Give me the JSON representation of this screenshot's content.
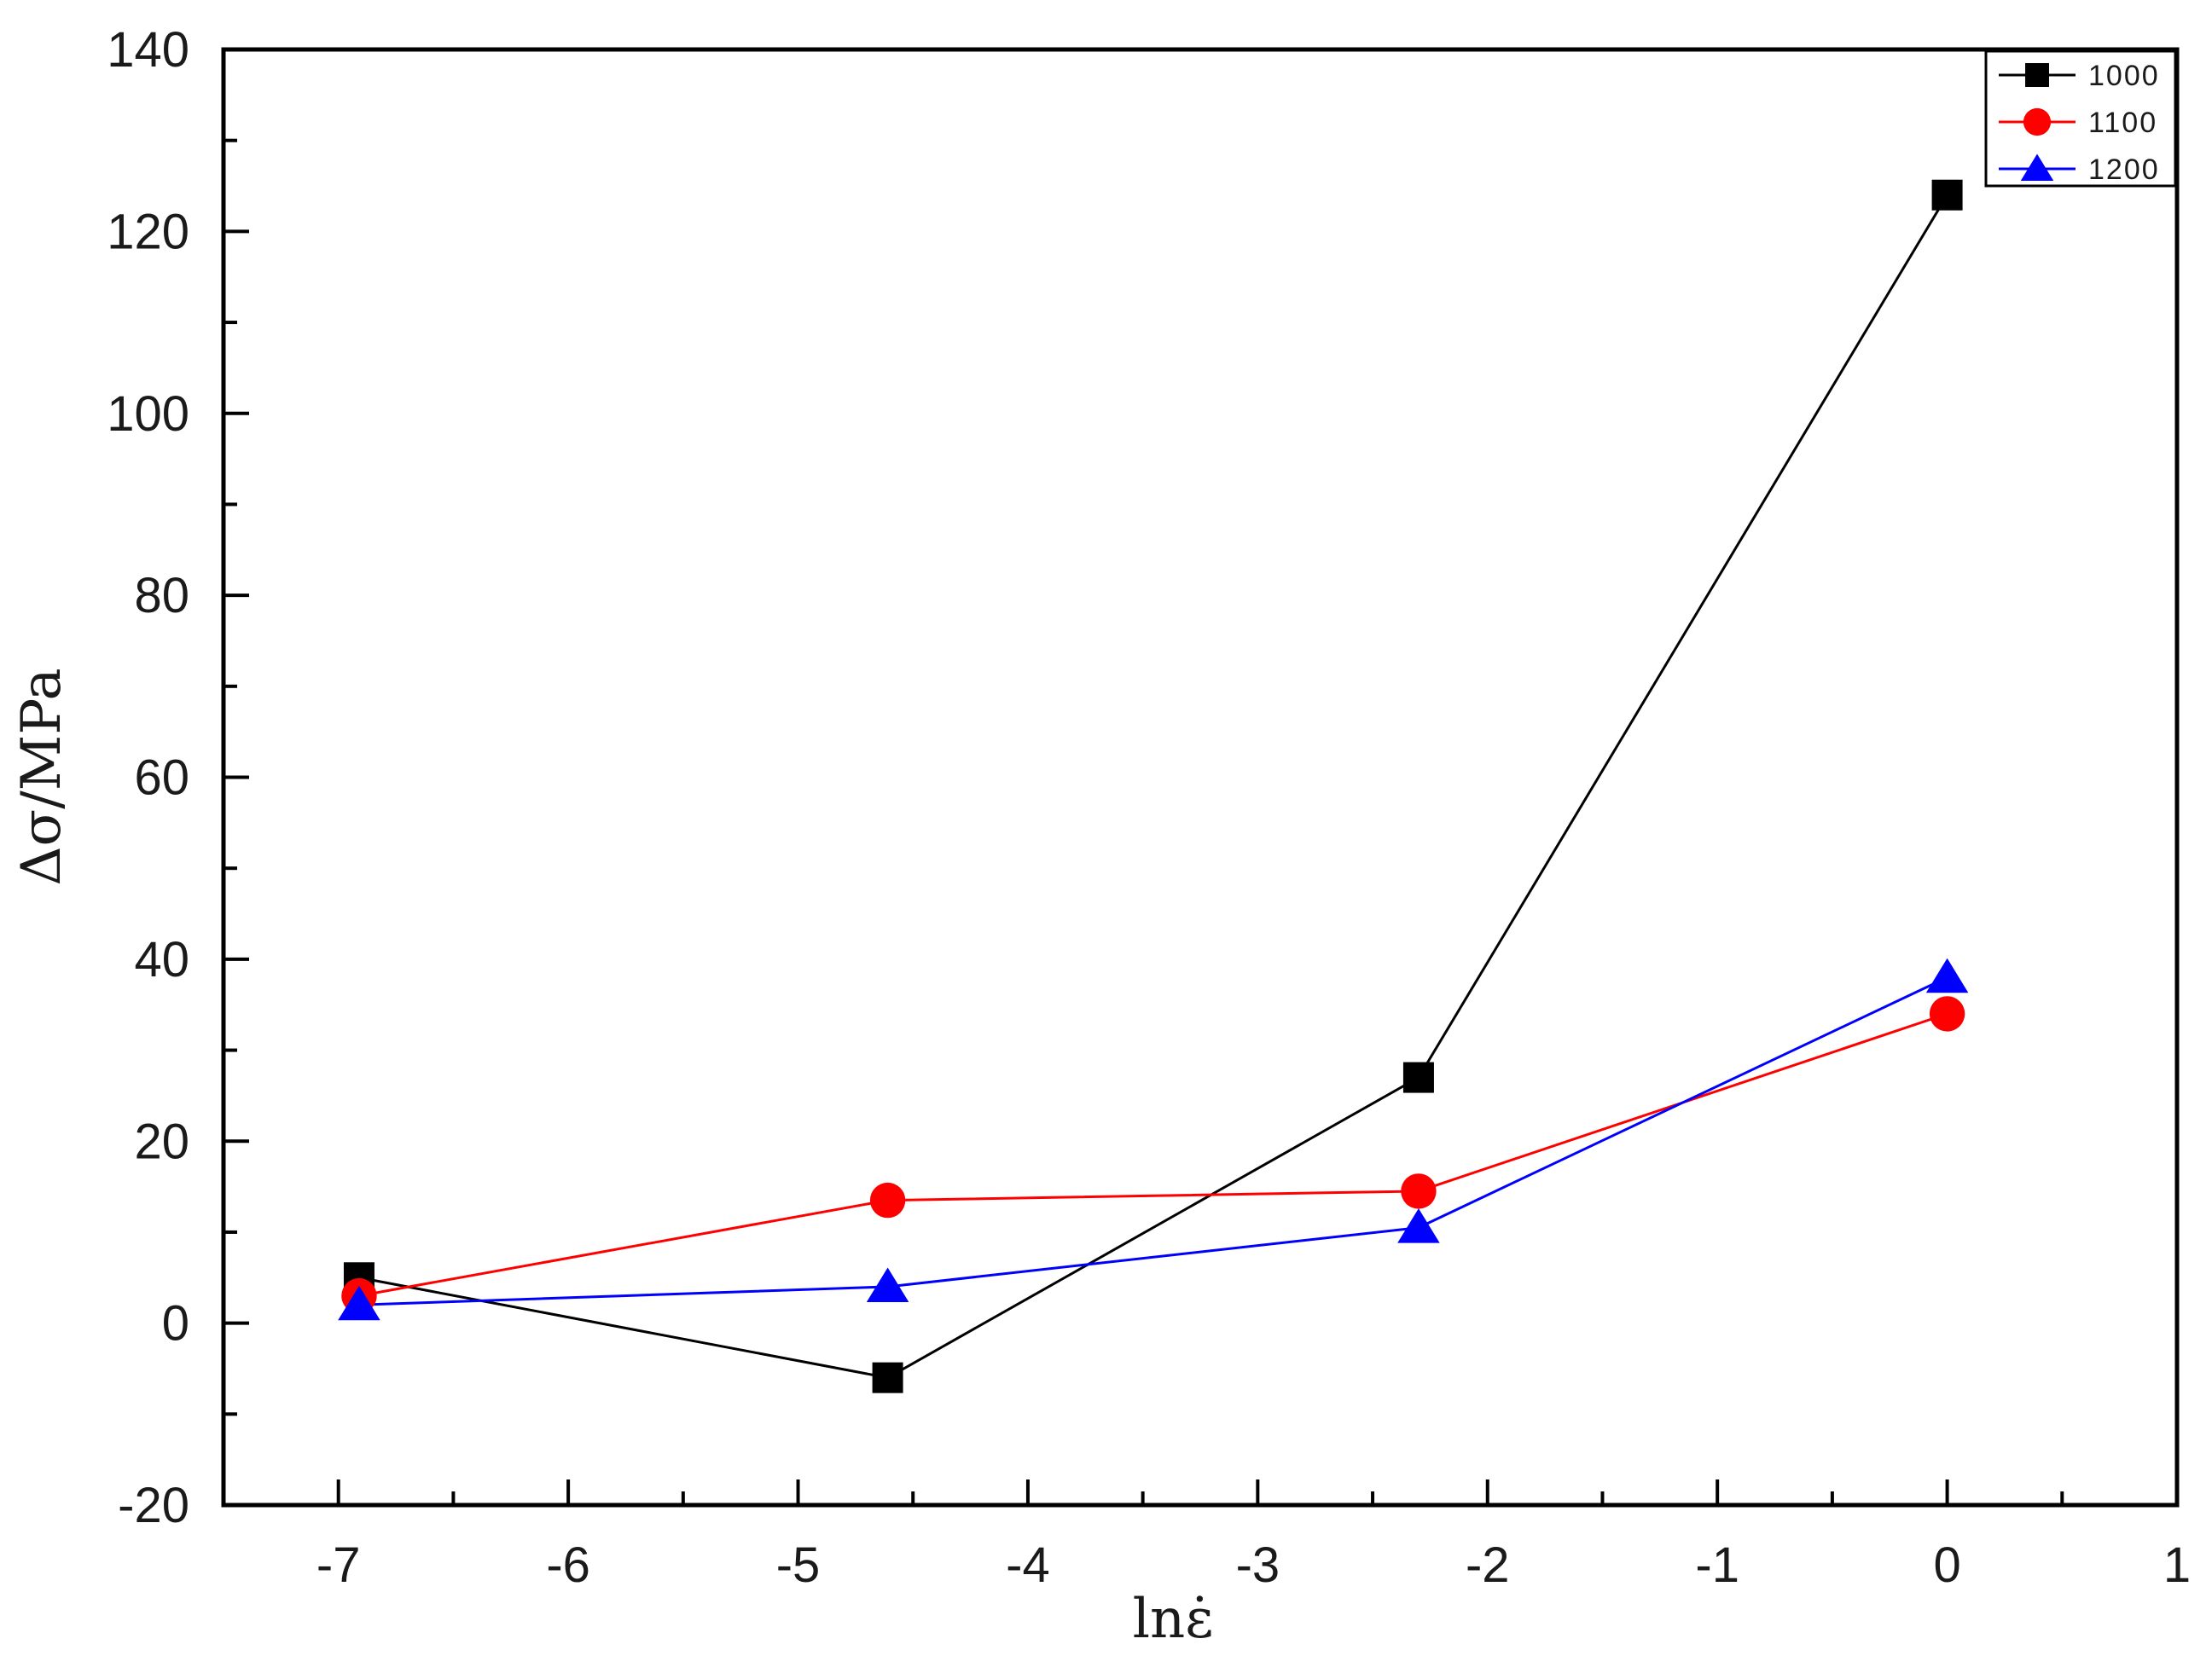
{
  "chart_data": {
    "type": "line",
    "title": "",
    "xlabel": "lnε̇",
    "ylabel": "Δσ/MPa",
    "xlim": [
      -7.5,
      1
    ],
    "ylim": [
      -20,
      140
    ],
    "xticks": [
      -7,
      -6,
      -5,
      -4,
      -3,
      -2,
      -1,
      0,
      1
    ],
    "yticks": [
      -20,
      0,
      20,
      40,
      60,
      80,
      100,
      120,
      140
    ],
    "grid": false,
    "legend_position": "top-right",
    "x": [
      -6.91,
      -4.61,
      -2.3,
      0
    ],
    "series": [
      {
        "name": "1000",
        "color": "#000000",
        "marker": "square",
        "values": [
          5,
          -6,
          27,
          124
        ]
      },
      {
        "name": "1100",
        "color": "#ff0000",
        "marker": "circle",
        "values": [
          3,
          13.5,
          14.5,
          34
        ]
      },
      {
        "name": "1200",
        "color": "#0000ff",
        "marker": "triangle",
        "values": [
          2,
          4,
          10.5,
          38
        ]
      }
    ]
  }
}
